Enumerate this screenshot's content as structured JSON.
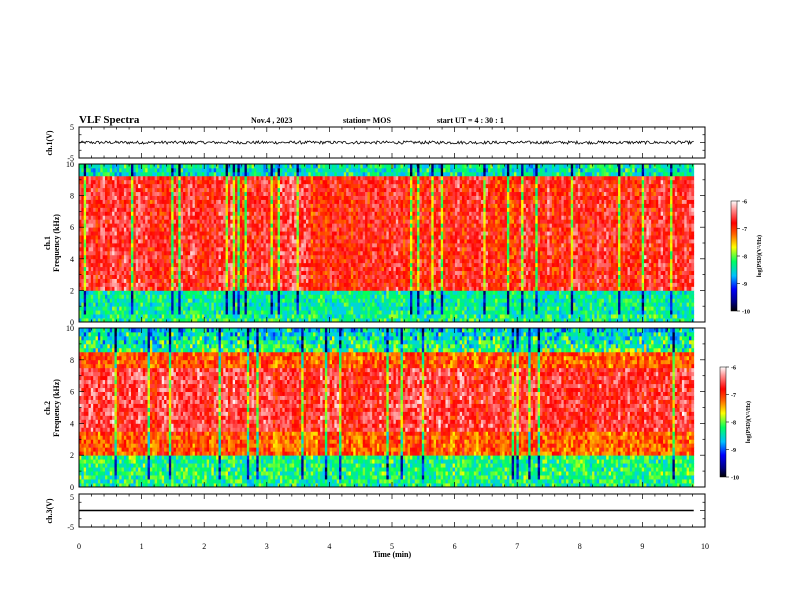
{
  "header": {
    "title": "VLF Spectra",
    "date": "Nov.4  , 2023",
    "station": "station= MOS",
    "start": "start  UT =   4 : 30 : 1"
  },
  "chart_data": [
    {
      "type": "line",
      "ylabel": "ch.1(V)",
      "ylim": [
        -5,
        5
      ],
      "yticks": [
        "5",
        "-5"
      ],
      "xlim": [
        0,
        10
      ],
      "baseline": 0,
      "noise_amplitude": 0.5,
      "data_end_x": 9.82
    },
    {
      "type": "heatmap",
      "ylabel": "Frequency (kHz)",
      "channel_label": "ch.1",
      "ylim": [
        0,
        10
      ],
      "yticks": [
        "0",
        "2",
        "4",
        "6",
        "8",
        "10"
      ],
      "xlim": [
        0,
        10
      ],
      "data_end_x": 9.82,
      "colorbar": {
        "label": "log(PSD)(V²/Hz)",
        "ticks": [
          "-6",
          "-7",
          "-8",
          "-9",
          "-10"
        ],
        "range": [
          -10,
          -6
        ]
      }
    },
    {
      "type": "heatmap",
      "ylabel": "Frequency (kHz)",
      "channel_label": "ch.2",
      "ylim": [
        0,
        10
      ],
      "yticks": [
        "0",
        "2",
        "4",
        "6",
        "8",
        "10"
      ],
      "xlim": [
        0,
        10
      ],
      "data_end_x": 9.82,
      "colorbar": {
        "label": "log(PSD)(V²/Hz)",
        "ticks": [
          "-6",
          "-7",
          "-8",
          "-9",
          "-10"
        ],
        "range": [
          -10,
          -6
        ]
      }
    },
    {
      "type": "line",
      "ylabel": "ch.3(V)",
      "ylim": [
        -5,
        5
      ],
      "yticks": [
        "5",
        "-5"
      ],
      "xlim": [
        0,
        10
      ],
      "baseline": 0,
      "noise_amplitude": 0,
      "data_end_x": 9.82
    }
  ],
  "xaxis": {
    "label": "Time (min)",
    "ticks": [
      "0",
      "1",
      "2",
      "3",
      "4",
      "5",
      "6",
      "7",
      "8",
      "9",
      "10"
    ]
  },
  "colors": {
    "colormap": [
      "#000040",
      "#0000ff",
      "#00c0ff",
      "#00ff60",
      "#ffff00",
      "#ff0000",
      "#ffffff"
    ]
  }
}
